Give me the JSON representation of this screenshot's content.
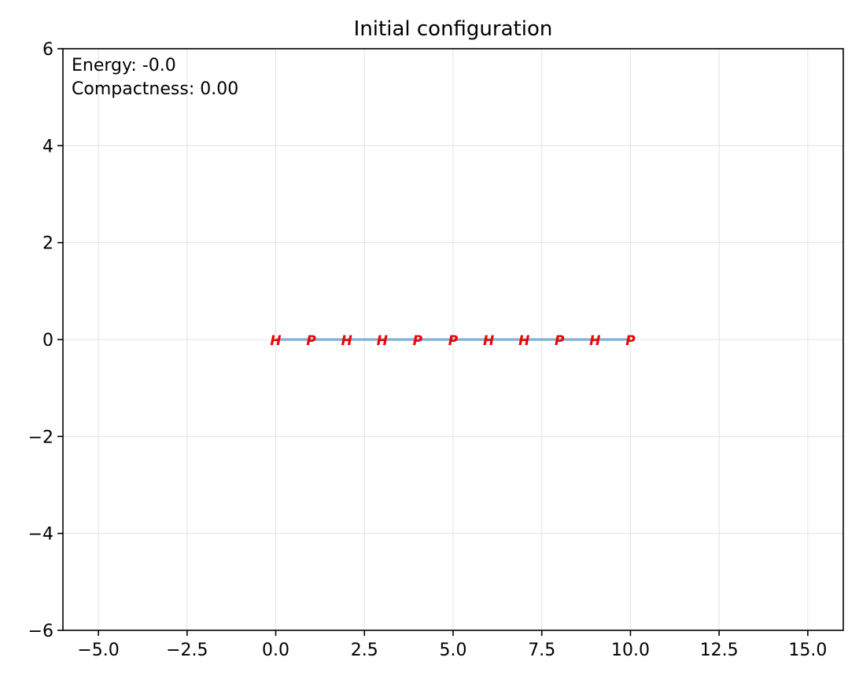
{
  "chart_data": {
    "type": "line",
    "title": "Initial configuration",
    "xlabel": "",
    "ylabel": "",
    "xlim": [
      -6,
      16
    ],
    "ylim": [
      -6,
      6
    ],
    "xticks": [
      -5.0,
      -2.5,
      0.0,
      2.5,
      5.0,
      7.5,
      10.0,
      12.5,
      15.0
    ],
    "xtick_labels": [
      "−5.0",
      "−2.5",
      "0.0",
      "2.5",
      "5.0",
      "7.5",
      "10.0",
      "12.5",
      "15.0"
    ],
    "yticks": [
      -6,
      -4,
      -2,
      0,
      2,
      4,
      6
    ],
    "ytick_labels": [
      "−6",
      "−4",
      "−2",
      "0",
      "2",
      "4",
      "6"
    ],
    "grid": true,
    "line_color": "#7fb0d5",
    "label_color": "#ee0000",
    "series": [
      {
        "x": [
          0,
          1,
          2,
          3,
          4,
          5,
          6,
          7,
          8,
          9,
          10
        ],
        "y": [
          0,
          0,
          0,
          0,
          0,
          0,
          0,
          0,
          0,
          0,
          0
        ],
        "labels": [
          "H",
          "P",
          "H",
          "H",
          "P",
          "P",
          "H",
          "H",
          "P",
          "H",
          "P"
        ]
      }
    ],
    "annotations": [
      "Energy: -0.0",
      "Compactness: 0.00"
    ]
  }
}
